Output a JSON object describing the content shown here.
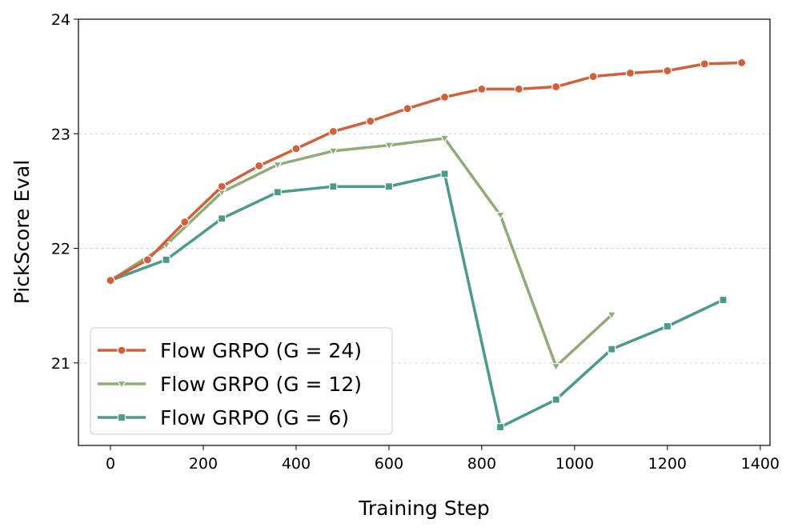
{
  "chart_data": {
    "type": "line",
    "title": "",
    "xlabel": "Training Step",
    "ylabel": "PickScore Eval",
    "xlim": [
      -69,
      1421
    ],
    "ylim": [
      20.28,
      24
    ],
    "xticks": [
      0,
      200,
      400,
      600,
      800,
      1000,
      1200,
      1400
    ],
    "yticks": [
      21,
      22,
      23,
      24
    ],
    "grid": "horizontal dashed",
    "legend_position": "lower-left",
    "series": [
      {
        "name": "Flow GRPO (G = 24)",
        "color": "#d1603d",
        "marker": "circle",
        "x": [
          0,
          80,
          160,
          240,
          320,
          400,
          480,
          560,
          640,
          720,
          800,
          880,
          960,
          1040,
          1120,
          1200,
          1280,
          1360
        ],
        "y": [
          21.72,
          21.9,
          22.23,
          22.54,
          22.72,
          22.87,
          23.02,
          23.11,
          23.22,
          23.32,
          23.39,
          23.39,
          23.41,
          23.5,
          23.53,
          23.55,
          23.61,
          23.62
        ]
      },
      {
        "name": "Flow GRPO (G = 12)",
        "color": "#8fac78",
        "marker": "triangle-down",
        "x": [
          0,
          120,
          240,
          360,
          480,
          600,
          720,
          840,
          960,
          1080
        ],
        "y": [
          21.72,
          22.03,
          22.49,
          22.73,
          22.85,
          22.9,
          22.96,
          22.29,
          20.97,
          21.42
        ]
      },
      {
        "name": "Flow GRPO (G = 6)",
        "color": "#4c9a8b",
        "marker": "square",
        "x": [
          0,
          120,
          240,
          360,
          480,
          600,
          720,
          840,
          960,
          1080,
          1200,
          1320
        ],
        "y": [
          21.72,
          21.9,
          22.26,
          22.49,
          22.54,
          22.54,
          22.65,
          20.44,
          20.68,
          21.12,
          21.32,
          21.55
        ]
      }
    ]
  }
}
